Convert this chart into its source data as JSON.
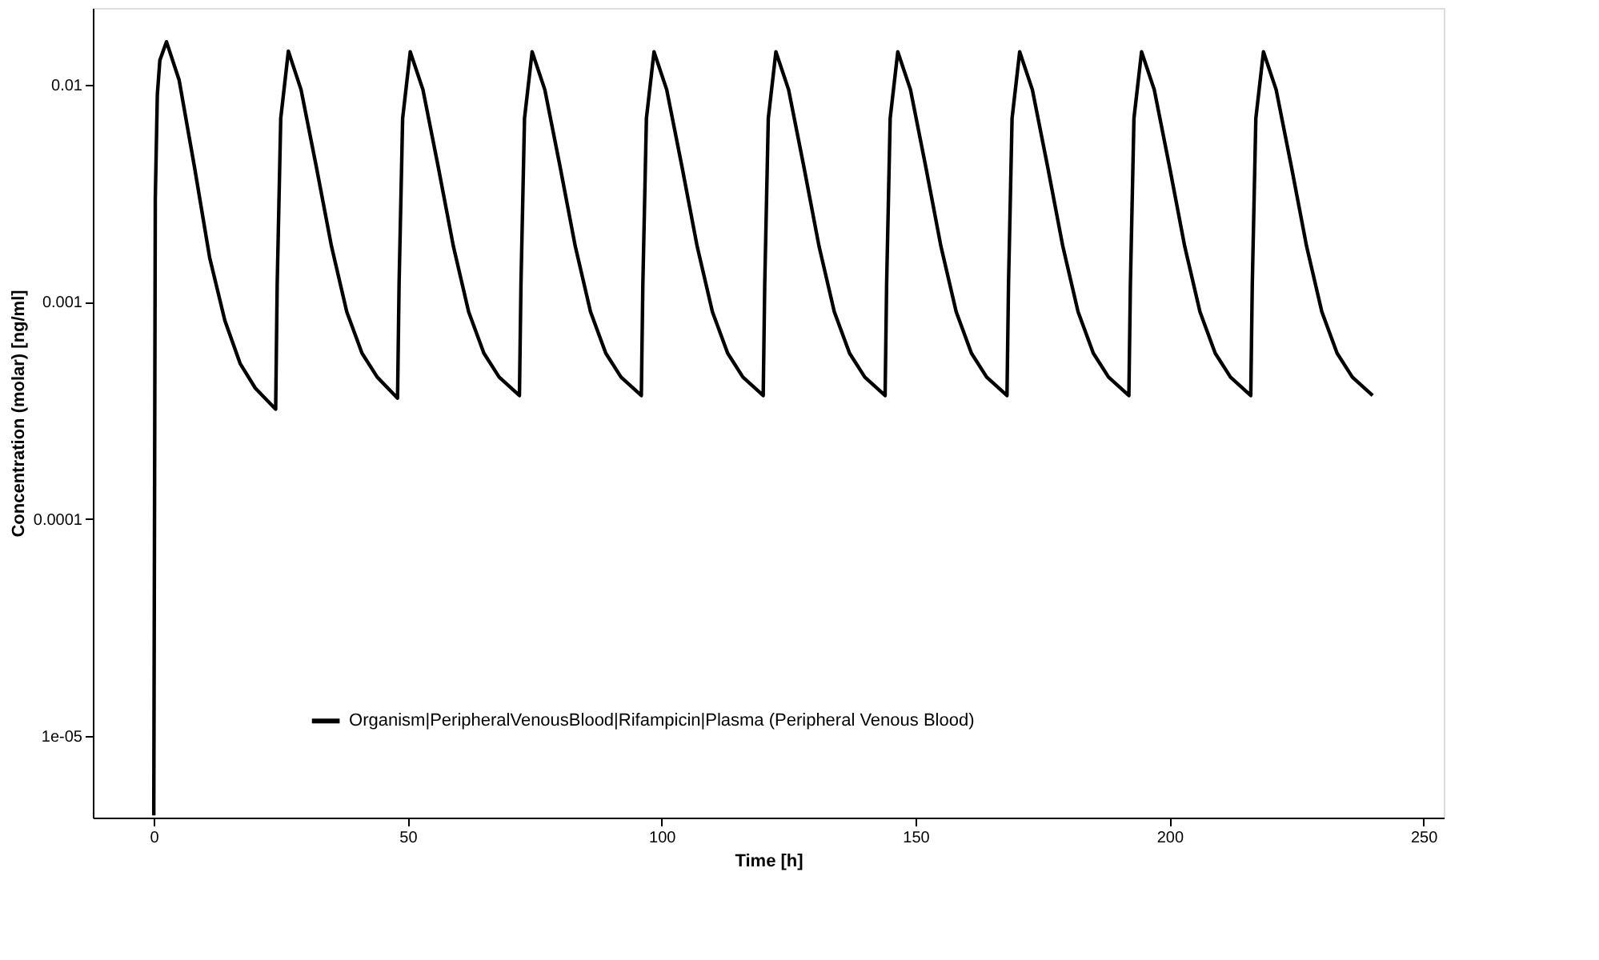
{
  "chart_data": {
    "type": "line",
    "xlabel": "Time [h]",
    "ylabel": "Concentration (molar) [ng/ml]",
    "log": "y",
    "grid": false,
    "legend": "bottom",
    "line_style": "solid",
    "marker": "none",
    "xlim": [
      -12,
      254
    ],
    "xticks": [
      0,
      50,
      100,
      150,
      200,
      250
    ],
    "ylim": [
      4.2e-06,
      0.0226
    ],
    "yticks": [
      {
        "value": 1e-05,
        "label": "1e-05"
      },
      0.0001,
      0.001,
      0.01
    ],
    "series": [
      {
        "name": "Organism|PeripheralVenousBlood|Rifampicin|Plasma (Peripheral Venous Blood)",
        "color": "#000000",
        "x": [
          0,
          0.3,
          0.7,
          1.2,
          2.5,
          5,
          8,
          11,
          14,
          17,
          20,
          24,
          24.3,
          25,
          26.5,
          29,
          32,
          35,
          38,
          41,
          44,
          48,
          48.3,
          49,
          50.5,
          53,
          56,
          59,
          62,
          65,
          68,
          72,
          72.3,
          73,
          74.5,
          77,
          80,
          83,
          86,
          89,
          92,
          96,
          96.3,
          97,
          98.5,
          101,
          104,
          107,
          110,
          113,
          116,
          120,
          120.3,
          121,
          122.5,
          125,
          128,
          131,
          134,
          137,
          140,
          144,
          144.3,
          145,
          146.5,
          149,
          152,
          155,
          158,
          161,
          164,
          168,
          168.3,
          169,
          170.5,
          173,
          176,
          179,
          182,
          185,
          188,
          192,
          192.3,
          193,
          194.5,
          197,
          200,
          203,
          206,
          209,
          212,
          216,
          216.3,
          217,
          218.5,
          221,
          224,
          227,
          230,
          233,
          236,
          240
        ],
        "values": [
          4.3e-06,
          0.003,
          0.009,
          0.013,
          0.0158,
          0.0105,
          0.0042,
          0.0016,
          0.00082,
          0.00052,
          0.0004,
          0.00032,
          0.0012,
          0.007,
          0.0143,
          0.0095,
          0.0042,
          0.0018,
          0.0009,
          0.00058,
          0.00045,
          0.00036,
          0.0012,
          0.007,
          0.0142,
          0.0095,
          0.0042,
          0.0018,
          0.0009,
          0.00058,
          0.00045,
          0.00037,
          0.0012,
          0.007,
          0.0142,
          0.0095,
          0.0042,
          0.0018,
          0.0009,
          0.00058,
          0.00045,
          0.00037,
          0.0012,
          0.007,
          0.0142,
          0.0095,
          0.0042,
          0.0018,
          0.0009,
          0.00058,
          0.00045,
          0.00037,
          0.0012,
          0.007,
          0.0142,
          0.0095,
          0.0042,
          0.0018,
          0.0009,
          0.00058,
          0.00045,
          0.00037,
          0.0012,
          0.007,
          0.0142,
          0.0095,
          0.0042,
          0.0018,
          0.0009,
          0.00058,
          0.00045,
          0.00037,
          0.0012,
          0.007,
          0.0142,
          0.0095,
          0.0042,
          0.0018,
          0.0009,
          0.00058,
          0.00045,
          0.00037,
          0.0012,
          0.007,
          0.0142,
          0.0095,
          0.0042,
          0.0018,
          0.0009,
          0.00058,
          0.00045,
          0.00037,
          0.0012,
          0.007,
          0.0142,
          0.0095,
          0.0042,
          0.0018,
          0.0009,
          0.00058,
          0.00045,
          0.00037
        ]
      }
    ]
  }
}
